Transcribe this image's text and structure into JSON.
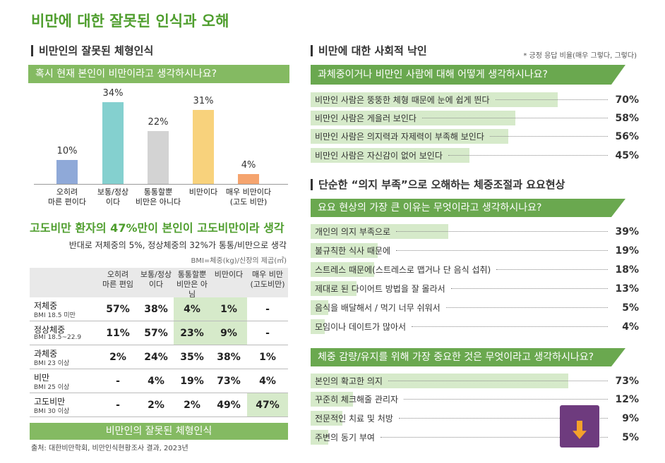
{
  "title": "비만에 대한 잘못된 인식과 오해",
  "left": {
    "section": "비만인의 잘못된 체형인식",
    "headline": "고도비만 환자의 47%만이 본인이 고도비만이라 생각",
    "subline": "반대로 저체중의 5%, 정상체중의 32%가 통통/비만으로 생각",
    "bmi_note": "BMI=체중(kg)/신장의 제곱(㎡)",
    "table": {
      "header": [
        "오히려\n마른 편임",
        "보통/정상\n이다",
        "통통할뿐\n비만은 아님",
        "비만이다",
        "매우 비만\n(고도비만)"
      ],
      "rows": [
        [
          "저체중",
          "BMI 18.5 미만",
          "57%",
          "38%",
          "4%",
          "1%",
          "-"
        ],
        [
          "정상체중",
          "BMI 18.5~22.9",
          "11%",
          "57%",
          "23%",
          "9%",
          "-"
        ],
        [
          "과체중",
          "BMI 23 이상",
          "2%",
          "24%",
          "35%",
          "38%",
          "1%"
        ],
        [
          "비만",
          "BMI 25 이상",
          "-",
          "4%",
          "19%",
          "73%",
          "4%"
        ],
        [
          "고도비만",
          "BMI 30 이상",
          "-",
          "2%",
          "2%",
          "49%",
          "47%"
        ]
      ]
    },
    "footer_banner": "비만인의 잘못된 체형인식",
    "source": "출처: 대한비만학회, 비만인식현황조사 결과, 2023년"
  },
  "right": {
    "section1": "비만에 대한 사회적 낙인",
    "note": "* 긍정 응답 비율(매우 그렇다, 그렇다)",
    "section2": "단순한 “의지 부족”으로 오해하는 체중조절과 요요현상"
  },
  "chart_data": [
    {
      "type": "bar",
      "title": "혹시 현재 본인이 비만이라고 생각하시나요?",
      "categories": [
        "오히려\n마른 편이다",
        "보통/정상\n이다",
        "통통할뿐\n비만은 아니다",
        "비만이다",
        "매우 비만이다\n(고도 비만)"
      ],
      "values": [
        10,
        34,
        22,
        31,
        4
      ],
      "value_labels": [
        "10%",
        "34%",
        "22%",
        "31%",
        "4%"
      ],
      "colors": [
        "#8fa9d8",
        "#84d0cf",
        "#d3d3d3",
        "#f8d27c",
        "#f5a46e"
      ]
    },
    {
      "type": "bar",
      "orientation": "horizontal",
      "title": "과체중이거나 비만인 사람에 대해 어떻게 생각하시나요?",
      "categories": [
        "비만인 사람은 뚱뚱한 체형 때문에 눈에 쉽게 띈다",
        "비만인 사람은 게을러 보인다",
        "비만인 사람은 의지력과 자제력이 부족해 보인다",
        "비만인 사람은 자신감이 없어 보인다"
      ],
      "values": [
        70,
        58,
        56,
        45
      ],
      "value_labels": [
        "70%",
        "58%",
        "56%",
        "45%"
      ],
      "color": "#d6eaca"
    },
    {
      "type": "bar",
      "orientation": "horizontal",
      "title": "요요 현상의 가장 큰 이유는 무엇이라고 생각하시나요?",
      "categories": [
        "개인의 의지 부족으로",
        "불규칙한 식사 때문에",
        "스트레스 때문에(스트레스로 맵거나 단 음식 섭취)",
        "제대로 된 다이어트 방법을 잘 몰라서",
        "음식을 배달해서 / 먹기 너무 쉬워서",
        "모임이나 데이트가 많아서"
      ],
      "values": [
        39,
        19,
        18,
        13,
        5,
        4
      ],
      "value_labels": [
        "39%",
        "19%",
        "18%",
        "13%",
        "5%",
        "4%"
      ],
      "color": "#d6eaca"
    },
    {
      "type": "bar",
      "orientation": "horizontal",
      "title": "체중 감량/유지를 위해 가장 중요한 것은 무엇이라고 생각하시나요?",
      "categories": [
        "본인의 확고한 의지",
        "꾸준히 체크해줄 관리자",
        "전문적인 치료 및 처방",
        "주변의 동기 부여"
      ],
      "values": [
        73,
        12,
        9,
        5
      ],
      "value_labels": [
        "73%",
        "12%",
        "9%",
        "5%"
      ],
      "color": "#d6eaca"
    }
  ]
}
